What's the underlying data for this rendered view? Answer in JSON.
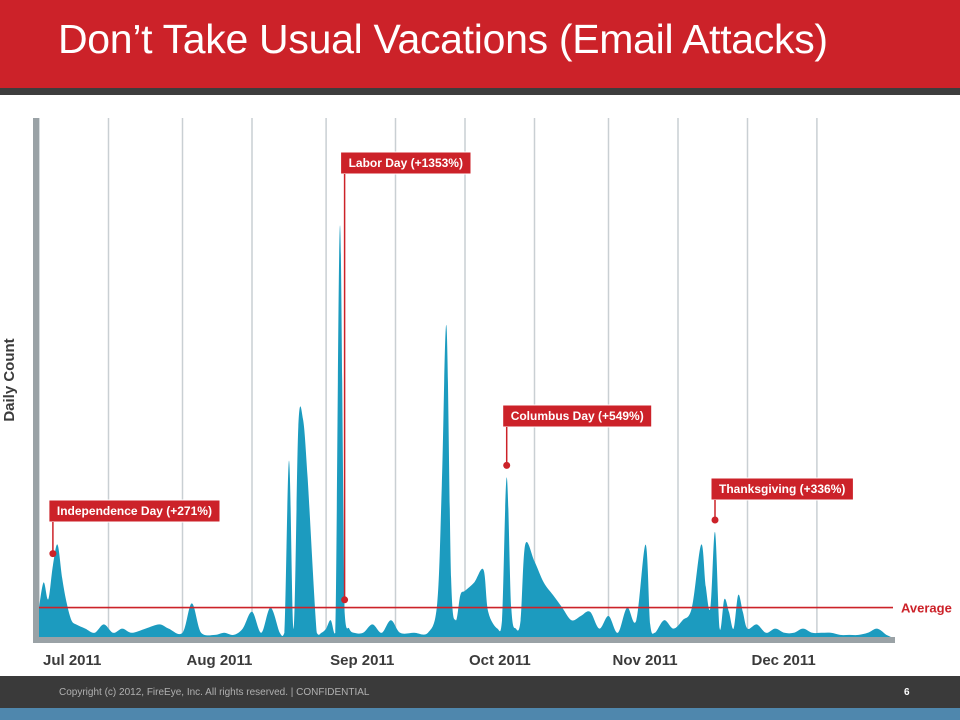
{
  "slide": {
    "title": "Don’t Take Usual Vacations (Email Attacks)",
    "footer": "Copyright (c) 2012, FireEye, Inc. All rights reserved. | CONFIDENTIAL",
    "page_number": "6"
  },
  "colors": {
    "title_bar": "#cc2229",
    "area_fill": "#1c9bbf",
    "average_line": "#cc2229",
    "callout": "#cc2229",
    "footer_bar": "#3a3a3a",
    "footer_strip": "#4f87ad"
  },
  "chart_data": {
    "type": "area",
    "title": "",
    "xlabel": "",
    "ylabel": "Daily Count",
    "grid": "vertical lines only",
    "months": [
      "Jul 2011",
      "Aug 2011",
      "Sep 2011",
      "Oct 2011",
      "Nov 2011",
      "Dec 2011"
    ],
    "x_range": [
      "2011-07-01",
      "2011-12-31"
    ],
    "y_range": [
      0,
      110
    ],
    "y_unit": "relative daily count (average = 7)",
    "average": {
      "label": "Average",
      "value": 7
    },
    "series": [
      {
        "x": [
          "2011-07-01",
          "2011-07-02",
          "2011-07-03",
          "2011-07-04",
          "2011-07-05",
          "2011-07-06",
          "2011-07-07",
          "2011-07-08",
          "2011-07-09",
          "2011-07-11",
          "2011-07-13",
          "2011-07-15",
          "2011-07-17",
          "2011-07-19",
          "2011-07-21",
          "2011-07-24",
          "2011-07-27",
          "2011-07-29",
          "2011-08-01",
          "2011-08-03",
          "2011-08-05",
          "2011-08-08",
          "2011-08-10",
          "2011-08-12",
          "2011-08-14",
          "2011-08-16",
          "2011-08-18",
          "2011-08-20",
          "2011-08-22",
          "2011-08-23",
          "2011-08-24",
          "2011-08-25",
          "2011-08-26",
          "2011-08-27",
          "2011-08-28",
          "2011-08-30",
          "2011-08-31",
          "2011-09-01",
          "2011-09-02",
          "2011-09-03",
          "2011-09-04",
          "2011-09-05",
          "2011-09-06",
          "2011-09-07",
          "2011-09-09",
          "2011-09-11",
          "2011-09-13",
          "2011-09-15",
          "2011-09-17",
          "2011-09-20",
          "2011-09-23",
          "2011-09-25",
          "2011-09-26",
          "2011-09-27",
          "2011-09-28",
          "2011-09-29",
          "2011-09-30",
          "2011-10-01",
          "2011-10-03",
          "2011-10-05",
          "2011-10-06",
          "2011-10-08",
          "2011-10-09",
          "2011-10-10",
          "2011-10-11",
          "2011-10-12",
          "2011-10-13",
          "2011-10-14",
          "2011-10-16",
          "2011-10-18",
          "2011-10-20",
          "2011-10-22",
          "2011-10-24",
          "2011-10-26",
          "2011-10-28",
          "2011-10-30",
          "2011-11-01",
          "2011-11-03",
          "2011-11-05",
          "2011-11-07",
          "2011-11-09",
          "2011-11-10",
          "2011-11-11",
          "2011-11-13",
          "2011-11-15",
          "2011-11-17",
          "2011-11-19",
          "2011-11-21",
          "2011-11-22",
          "2011-11-23",
          "2011-11-24",
          "2011-11-25",
          "2011-11-26",
          "2011-11-27",
          "2011-11-28",
          "2011-11-29",
          "2011-11-30",
          "2011-12-01",
          "2011-12-03",
          "2011-12-05",
          "2011-12-07",
          "2011-12-09",
          "2011-12-11",
          "2011-12-13",
          "2011-12-15",
          "2011-12-17",
          "2011-12-19",
          "2011-12-21",
          "2011-12-23",
          "2011-12-25",
          "2011-12-27",
          "2011-12-29",
          "2011-12-31"
        ],
        "y": [
          7,
          13,
          9,
          17,
          22,
          14,
          8,
          4,
          3,
          2,
          1,
          3,
          1,
          2,
          1,
          2,
          3,
          2,
          1,
          8,
          1,
          0.5,
          1,
          0.5,
          2,
          6,
          1,
          7,
          1,
          1,
          42,
          2,
          50,
          52,
          38,
          1,
          1,
          2,
          4,
          1,
          98,
          6,
          2,
          1,
          1,
          3,
          1,
          4,
          1,
          1,
          1,
          8,
          36,
          74,
          14,
          4,
          10,
          11,
          13,
          16,
          6,
          2,
          4,
          38,
          7,
          2,
          4,
          22,
          18,
          13,
          10,
          7,
          4,
          5,
          6,
          2,
          5,
          1,
          7,
          4,
          22,
          3,
          1,
          4,
          2,
          4,
          7,
          22,
          12,
          7,
          25,
          2,
          9,
          6,
          2,
          10,
          6,
          2,
          3,
          1,
          2,
          1,
          1,
          2,
          1,
          1,
          1,
          0.5,
          0.5,
          0.5,
          1,
          2,
          0.5
        ]
      }
    ],
    "annotations": [
      {
        "label": "Independence Day (+271%)",
        "date": "2011-07-04"
      },
      {
        "label": "Labor Day (+1353%)",
        "date": "2011-09-05"
      },
      {
        "label": "Columbus Day (+549%)",
        "date": "2011-10-10"
      },
      {
        "label": "Thanksgiving (+336%)",
        "date": "2011-11-24"
      }
    ]
  }
}
